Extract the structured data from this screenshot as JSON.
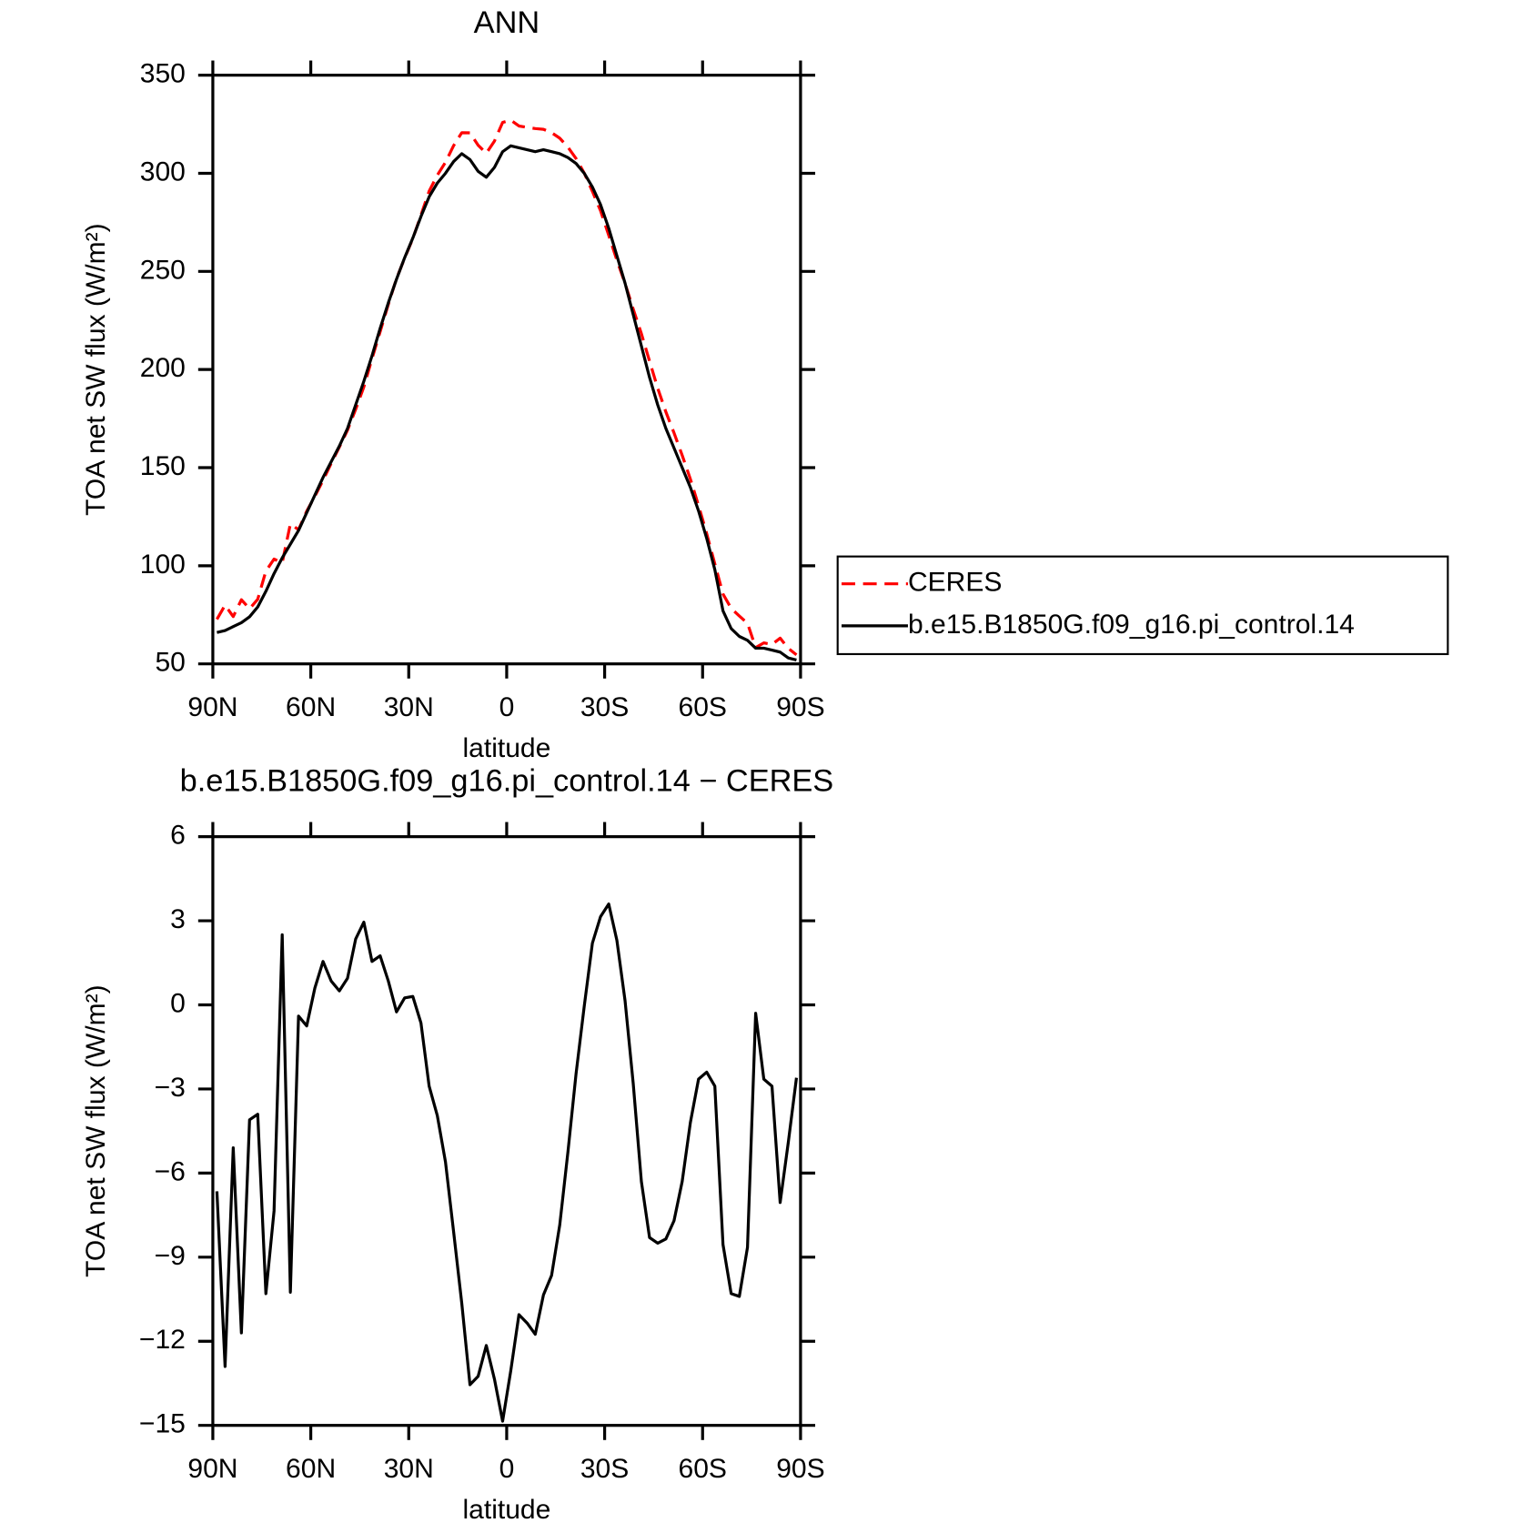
{
  "chart_data": [
    {
      "type": "line",
      "title": "ANN",
      "xlabel": "latitude",
      "ylabel": "TOA net SW flux (W/m²)",
      "x": [
        88.75,
        86.25,
        83.75,
        81.25,
        78.75,
        76.25,
        73.75,
        71.25,
        68.75,
        66.25,
        63.75,
        61.25,
        58.75,
        56.25,
        53.75,
        51.25,
        48.75,
        46.25,
        43.75,
        41.25,
        38.75,
        36.25,
        33.75,
        31.25,
        28.75,
        26.25,
        23.75,
        21.25,
        18.75,
        16.25,
        13.75,
        11.25,
        8.75,
        6.25,
        3.75,
        1.25,
        -1.25,
        -3.75,
        -6.25,
        -8.75,
        -11.25,
        -13.75,
        -16.25,
        -18.75,
        -21.25,
        -23.75,
        -26.25,
        -28.75,
        -31.25,
        -33.75,
        -36.25,
        -38.75,
        -41.25,
        -43.75,
        -46.25,
        -48.75,
        -51.25,
        -53.75,
        -56.25,
        -58.75,
        -61.25,
        -63.75,
        -66.25,
        -68.75,
        -71.25,
        -73.75,
        -76.25,
        -78.75,
        -81.25,
        -83.75,
        -86.25,
        -88.75
      ],
      "series": [
        {
          "name": "CERES",
          "color": "#ff0000",
          "linestyle": "dashed",
          "values": [
            72.7,
            79.9,
            74.1,
            82.7,
            78.1,
            82.9,
            97.3,
            103.4,
            101.5,
            121.3,
            118.4,
            127.8,
            135.4,
            143.5,
            152.2,
            160.5,
            169.1,
            179.7,
            191.1,
            205.5,
            219.3,
            233.2,
            246.3,
            256.8,
            266.7,
            278.7,
            290.9,
            299.0,
            305.6,
            314.1,
            320.7,
            320.6,
            314.3,
            310.2,
            316.4,
            325.9,
            327.1,
            324.1,
            323.4,
            322.8,
            322.4,
            320.7,
            317.9,
            313.3,
            307.5,
            300.1,
            290.8,
            280.9,
            268.4,
            255.7,
            243.9,
            230.8,
            218.3,
            204.3,
            190.5,
            178.4,
            167.7,
            156.3,
            144.2,
            130.7,
            116.4,
            100.9,
            85.6,
            78.3,
            74.4,
            70.7,
            58.3,
            60.7,
            59.9,
            63.1,
            57.9,
            54.6
          ]
        },
        {
          "name": "b.e15.B1850G.f09_g16.pi_control.14",
          "color": "#000000",
          "linestyle": "solid",
          "values": [
            66,
            67,
            69,
            71,
            74,
            79,
            87,
            96,
            104,
            111,
            118,
            127,
            136,
            145,
            153,
            161,
            170,
            182,
            194,
            207,
            221,
            234,
            246,
            257,
            267,
            278,
            288,
            295,
            300,
            306,
            310,
            307,
            301,
            298,
            303,
            311,
            314,
            313,
            312,
            311,
            312,
            311,
            310,
            308,
            305,
            300,
            293,
            284,
            272,
            258,
            244,
            228,
            212,
            196,
            182,
            170,
            160,
            150,
            140,
            128,
            114,
            98,
            77,
            68,
            64,
            62,
            58,
            58,
            57,
            56,
            53,
            52
          ]
        }
      ],
      "xlim": [
        90,
        -90
      ],
      "xticks": [
        {
          "value": 90,
          "label": "90N"
        },
        {
          "value": 60,
          "label": "60N"
        },
        {
          "value": 30,
          "label": "30N"
        },
        0,
        {
          "value": -30,
          "label": "30S"
        },
        {
          "value": -60,
          "label": "60S"
        },
        {
          "value": -90,
          "label": "90S"
        }
      ],
      "ylim": [
        50,
        350
      ],
      "yticks": [
        50,
        100,
        150,
        200,
        250,
        300,
        350
      ],
      "legend": "right"
    },
    {
      "type": "line",
      "title": "b.e15.B1850G.f09_g16.pi_control.14 − CERES",
      "xlabel": "latitude",
      "ylabel": "TOA net SW flux (W/m²)",
      "x": [
        88.75,
        86.25,
        83.75,
        81.25,
        78.75,
        76.25,
        73.75,
        71.25,
        68.75,
        66.25,
        63.75,
        61.25,
        58.75,
        56.25,
        53.75,
        51.25,
        48.75,
        46.25,
        43.75,
        41.25,
        38.75,
        36.25,
        33.75,
        31.25,
        28.75,
        26.25,
        23.75,
        21.25,
        18.75,
        16.25,
        13.75,
        11.25,
        8.75,
        6.25,
        3.75,
        1.25,
        -1.25,
        -3.75,
        -6.25,
        -8.75,
        -11.25,
        -13.75,
        -16.25,
        -18.75,
        -21.25,
        -23.75,
        -26.25,
        -28.75,
        -31.25,
        -33.75,
        -36.25,
        -38.75,
        -41.25,
        -43.75,
        -46.25,
        -48.75,
        -51.25,
        -53.75,
        -56.25,
        -58.75,
        -61.25,
        -63.75,
        -66.25,
        -68.75,
        -71.25,
        -73.75,
        -76.25,
        -78.75,
        -81.25,
        -83.75,
        -86.25,
        -88.75
      ],
      "series": [
        {
          "color": "#000000",
          "linestyle": "solid",
          "values": [
            -6.65,
            -12.9,
            -5.1,
            -11.7,
            -4.1,
            -3.9,
            -10.3,
            -7.35,
            2.5,
            -10.25,
            -0.4,
            -0.75,
            0.6,
            1.55,
            0.85,
            0.5,
            0.95,
            2.35,
            2.95,
            1.55,
            1.75,
            0.85,
            -0.25,
            0.25,
            0.3,
            -0.65,
            -2.9,
            -3.95,
            -5.6,
            -8.1,
            -10.65,
            -13.55,
            -13.25,
            -12.15,
            -13.35,
            -14.85,
            -13.05,
            -11.05,
            -11.35,
            -11.75,
            -10.35,
            -9.65,
            -7.85,
            -5.25,
            -2.45,
            -0.05,
            2.2,
            3.15,
            3.6,
            2.3,
            0.15,
            -2.8,
            -6.3,
            -8.3,
            -8.5,
            -8.35,
            -7.7,
            -6.3,
            -4.2,
            -2.65,
            -2.4,
            -2.9,
            -8.55,
            -10.3,
            -10.4,
            -8.65,
            -0.3,
            -2.65,
            -2.9,
            -7.05,
            -4.9,
            -2.6
          ]
        }
      ],
      "xlim": [
        90,
        -90
      ],
      "xticks": [
        {
          "value": 90,
          "label": "90N"
        },
        {
          "value": 60,
          "label": "60N"
        },
        {
          "value": 30,
          "label": "30N"
        },
        0,
        {
          "value": -30,
          "label": "30S"
        },
        {
          "value": -60,
          "label": "60S"
        },
        {
          "value": -90,
          "label": "90S"
        }
      ],
      "ylim": [
        -15,
        6
      ],
      "yticks": [
        {
          "value": -15,
          "label": "−15"
        },
        {
          "value": -12,
          "label": "−12"
        },
        {
          "value": -9,
          "label": "−9"
        },
        {
          "value": -6,
          "label": "−6"
        },
        {
          "value": -3,
          "label": "−3"
        },
        0,
        3,
        6
      ]
    }
  ]
}
